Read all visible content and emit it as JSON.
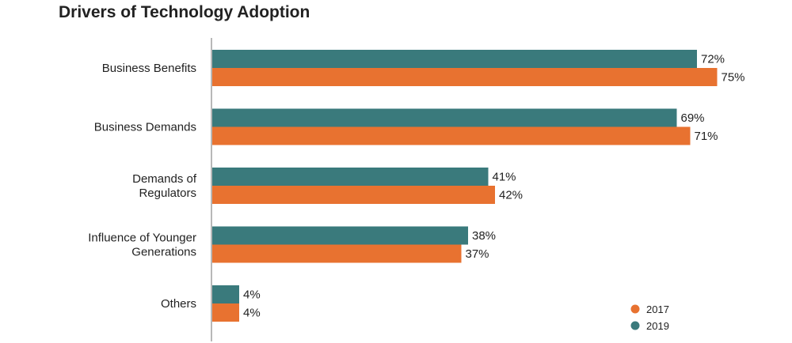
{
  "chart_data": {
    "type": "bar",
    "orientation": "horizontal",
    "title": "Drivers of Technology Adoption",
    "categories": [
      [
        "Business Benefits"
      ],
      [
        "Business Demands"
      ],
      [
        "Demands of",
        "Regulators"
      ],
      [
        "Influence of Younger",
        "Generations"
      ],
      [
        "Others"
      ]
    ],
    "series": [
      {
        "name": "2019",
        "color": "#3a7a7c",
        "values": [
          72,
          69,
          41,
          38,
          4
        ]
      },
      {
        "name": "2017",
        "color": "#e87230",
        "values": [
          75,
          71,
          42,
          37,
          4
        ]
      }
    ],
    "value_suffix": "%",
    "xlim": [
      0,
      100
    ],
    "grid": false,
    "legend": {
      "position": "bottom-right",
      "order": [
        "2017",
        "2019"
      ]
    }
  }
}
